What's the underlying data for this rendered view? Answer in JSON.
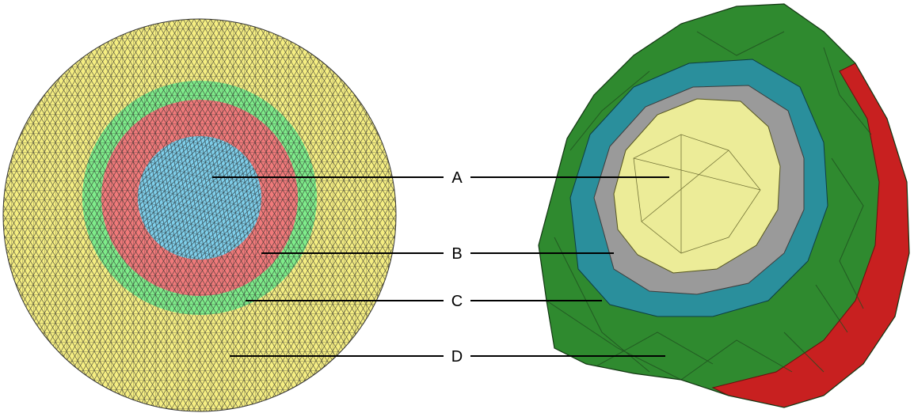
{
  "figure": {
    "labels": [
      {
        "id": "A",
        "text": "A"
      },
      {
        "id": "B",
        "text": "B"
      },
      {
        "id": "C",
        "text": "C"
      },
      {
        "id": "D",
        "text": "D"
      }
    ]
  },
  "colors": {
    "core": "#7fd0ec",
    "layer_b": "#f07a7a",
    "layer_c": "#7eec8a",
    "layer_d": "#f5ee82",
    "mesh_line": "#2a2a2a",
    "solid_core": "#ecec98",
    "solid_grey": "#9a9a9a",
    "solid_teal": "#2a8f9c",
    "solid_green": "#2f8a2f",
    "solid_red": "#c82020"
  }
}
